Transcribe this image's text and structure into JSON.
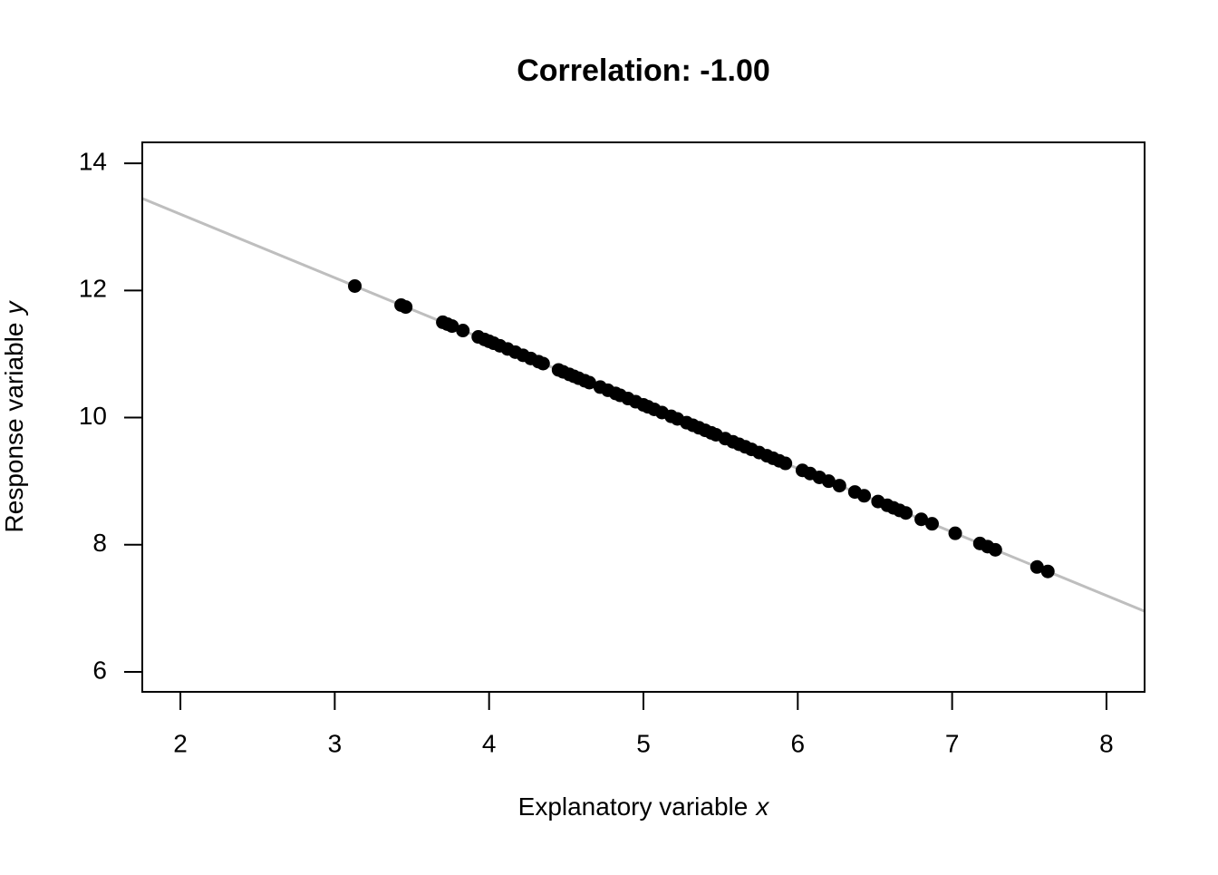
{
  "chart_data": {
    "type": "scatter",
    "title": "Correlation: -1.00",
    "xlabel": [
      "Explanatory variable",
      "x"
    ],
    "ylabel": [
      "Response variable",
      "y"
    ],
    "x": [
      3.13,
      3.43,
      3.46,
      3.7,
      3.73,
      3.76,
      3.83,
      3.93,
      3.97,
      4.0,
      4.03,
      4.07,
      4.12,
      4.17,
      4.22,
      4.27,
      4.32,
      4.35,
      4.45,
      4.48,
      4.52,
      4.55,
      4.58,
      4.62,
      4.65,
      4.72,
      4.77,
      4.82,
      4.85,
      4.9,
      4.95,
      5.0,
      5.03,
      5.07,
      5.12,
      5.18,
      5.22,
      5.28,
      5.32,
      5.36,
      5.4,
      5.44,
      5.47,
      5.53,
      5.58,
      5.62,
      5.66,
      5.7,
      5.75,
      5.8,
      5.84,
      5.88,
      5.92,
      6.03,
      6.08,
      6.14,
      6.2,
      6.27,
      6.37,
      6.43,
      6.52,
      6.58,
      6.62,
      6.66,
      6.7,
      6.8,
      6.87,
      7.02,
      7.18,
      7.23,
      7.28,
      7.55,
      7.62
    ],
    "series": [
      {
        "color": "#000000",
        "values": [
          12.07,
          11.77,
          11.74,
          11.5,
          11.47,
          11.44,
          11.37,
          11.27,
          11.23,
          11.2,
          11.17,
          11.13,
          11.08,
          11.03,
          10.98,
          10.93,
          10.88,
          10.85,
          10.75,
          10.72,
          10.68,
          10.65,
          10.62,
          10.58,
          10.55,
          10.48,
          10.43,
          10.38,
          10.35,
          10.3,
          10.25,
          10.2,
          10.17,
          10.13,
          10.08,
          10.02,
          9.98,
          9.92,
          9.88,
          9.84,
          9.8,
          9.76,
          9.73,
          9.67,
          9.62,
          9.58,
          9.54,
          9.5,
          9.45,
          9.4,
          9.36,
          9.32,
          9.28,
          9.17,
          9.12,
          9.06,
          9.0,
          8.93,
          8.83,
          8.77,
          8.68,
          8.62,
          8.58,
          8.54,
          8.5,
          8.4,
          8.33,
          8.18,
          8.02,
          7.97,
          7.92,
          7.65,
          7.58
        ]
      }
    ],
    "fit_line": {
      "intercept": 15.2,
      "slope": -1,
      "color": "#bebebe"
    },
    "xlim": [
      1.753,
      8.247
    ],
    "ylim": [
      5.686,
      14.33
    ],
    "xticks": [
      2,
      3,
      4,
      5,
      6,
      7,
      8
    ],
    "yticks": [
      6,
      8,
      10,
      12,
      14
    ]
  }
}
